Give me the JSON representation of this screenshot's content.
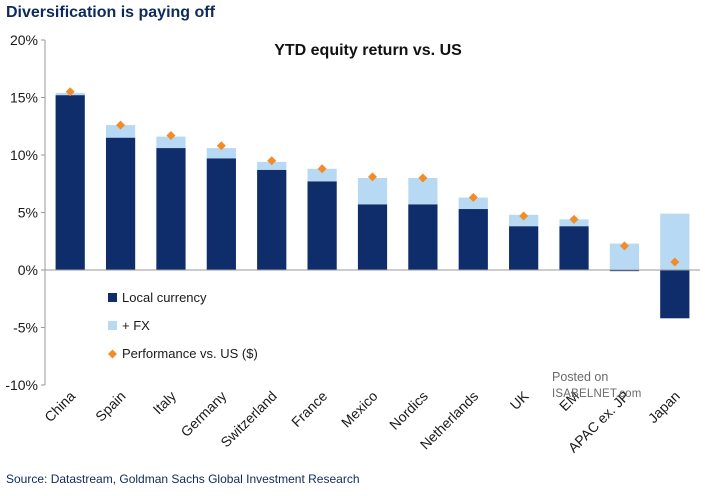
{
  "page": {
    "title": "Diversification is paying off",
    "source": "Source: Datastream, Goldman Sachs Global Investment Research",
    "watermark": {
      "line1": "Posted on",
      "line2": "ISABELNET.com"
    }
  },
  "colors": {
    "local": "#0f2c6b",
    "fx": "#b8d9f4",
    "performance": "#f28c28",
    "axis": "#9a9a9a",
    "title": "#0d2a5c"
  },
  "chart_data": {
    "type": "bar",
    "title": "YTD equity return vs. US",
    "xlabel": "",
    "ylabel": "",
    "ylim": [
      -10,
      20
    ],
    "yticks": [
      -10,
      -5,
      0,
      5,
      10,
      15,
      20
    ],
    "ytick_labels": [
      "-10%",
      "-5%",
      "0%",
      "5%",
      "10%",
      "15%",
      "20%"
    ],
    "grid": false,
    "legend_position": "left",
    "categories": [
      "China",
      "Spain",
      "Italy",
      "Germany",
      "Switzerland",
      "France",
      "Mexico",
      "Nordics",
      "Netherlands",
      "UK",
      "EM",
      "APAC ex. JP",
      "Japan"
    ],
    "series": [
      {
        "name": "Local currency",
        "kind": "bar",
        "values": [
          15.2,
          11.5,
          10.6,
          9.7,
          8.7,
          7.7,
          5.7,
          5.7,
          5.3,
          3.8,
          3.8,
          -0.1,
          -4.2
        ]
      },
      {
        "name": "+ FX",
        "kind": "bar",
        "values": [
          0.2,
          1.1,
          1.0,
          0.9,
          0.7,
          1.1,
          2.3,
          2.3,
          1.0,
          1.0,
          0.6,
          2.3,
          4.9
        ]
      },
      {
        "name": "Performance vs. US ($)",
        "kind": "marker",
        "values": [
          15.5,
          12.6,
          11.7,
          10.8,
          9.5,
          8.8,
          8.1,
          8.0,
          6.3,
          4.7,
          4.4,
          2.1,
          0.7
        ]
      }
    ]
  }
}
